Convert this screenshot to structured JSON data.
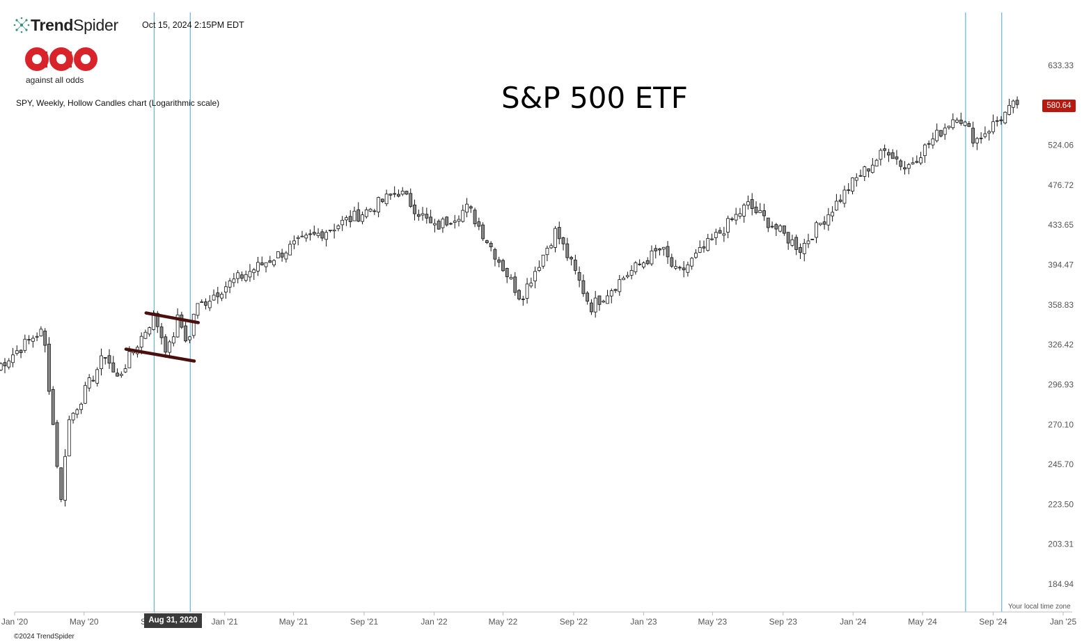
{
  "header": {
    "brand_bold": "Trend",
    "brand_light": "Spider",
    "timestamp": "Oct 15, 2024 2:15PM EDT",
    "logo_caption": "against all odds",
    "chart_description": "SPY, Weekly, Hollow Candles chart (Logarithmic scale)",
    "title": "S&P 500 ETF"
  },
  "price_badge": "580.64",
  "hover_date": "Aug 31, 2020",
  "timezone_note": "Your local time zone",
  "copyright": "©2024 TrendSpider",
  "colors": {
    "candle": "#111111",
    "candle_down_fill": "#888888",
    "vline": "#4aa3c7",
    "trendline": "#4a1010",
    "badge": "#b8190f",
    "logo_red": "#d8232a"
  },
  "chart_data": {
    "type": "candlestick",
    "scale": "log",
    "ylim": [
      170,
      660
    ],
    "y_ticks": [
      "633.33",
      "524.06",
      "476.72",
      "433.65",
      "394.47",
      "358.83",
      "326.42",
      "296.93",
      "270.10",
      "245.70",
      "223.50",
      "203.31",
      "184.94"
    ],
    "x_ticks": [
      "Jan '20",
      "May '20",
      "Sep '20",
      "Jan '21",
      "May '21",
      "Sep '21",
      "Jan '22",
      "May '22",
      "Sep '22",
      "Jan '23",
      "May '23",
      "Sep '23",
      "Jan '24",
      "May '24",
      "Sep '24",
      "Jan '25"
    ],
    "x_range": [
      "2020-01",
      "2025-01"
    ],
    "weekly_close_path": [
      [
        "2019-12",
        309
      ],
      [
        "2020-02-14",
        337
      ],
      [
        "2020-02-21",
        333
      ],
      [
        "2020-03-23",
        222
      ],
      [
        "2020-04",
        270
      ],
      [
        "2020-06-08",
        320
      ],
      [
        "2020-06-26",
        300
      ],
      [
        "2020-08-31",
        350
      ],
      [
        "2020-09-24",
        320
      ],
      [
        "2020-10-12",
        348
      ],
      [
        "2020-10-30",
        326
      ],
      [
        "2020-11-09",
        355
      ],
      [
        "2021-01",
        375
      ],
      [
        "2021-05",
        413
      ],
      [
        "2021-09",
        447
      ],
      [
        "2021-11",
        470
      ],
      [
        "2022-01",
        430
      ],
      [
        "2022-03",
        452
      ],
      [
        "2022-06",
        365
      ],
      [
        "2022-08",
        428
      ],
      [
        "2022-10",
        357
      ],
      [
        "2022-12",
        385
      ],
      [
        "2023-02",
        410
      ],
      [
        "2023-03",
        385
      ],
      [
        "2023-07",
        455
      ],
      [
        "2023-10",
        410
      ],
      [
        "2024-01",
        480
      ],
      [
        "2024-03",
        520
      ],
      [
        "2024-04",
        496
      ],
      [
        "2024-07",
        565
      ],
      [
        "2024-08",
        530
      ],
      [
        "2024-10-15",
        580.64
      ]
    ],
    "vertical_markers": [
      "2020-08-31",
      "2020-11-02",
      "2024-07-15",
      "2024-09-16"
    ],
    "trendlines": [
      {
        "from": [
          "2020-08-17",
          352
        ],
        "to": [
          "2020-11-16",
          344
        ]
      },
      {
        "from": [
          "2020-07-13",
          323
        ],
        "to": [
          "2020-11-09",
          314
        ]
      }
    ]
  }
}
